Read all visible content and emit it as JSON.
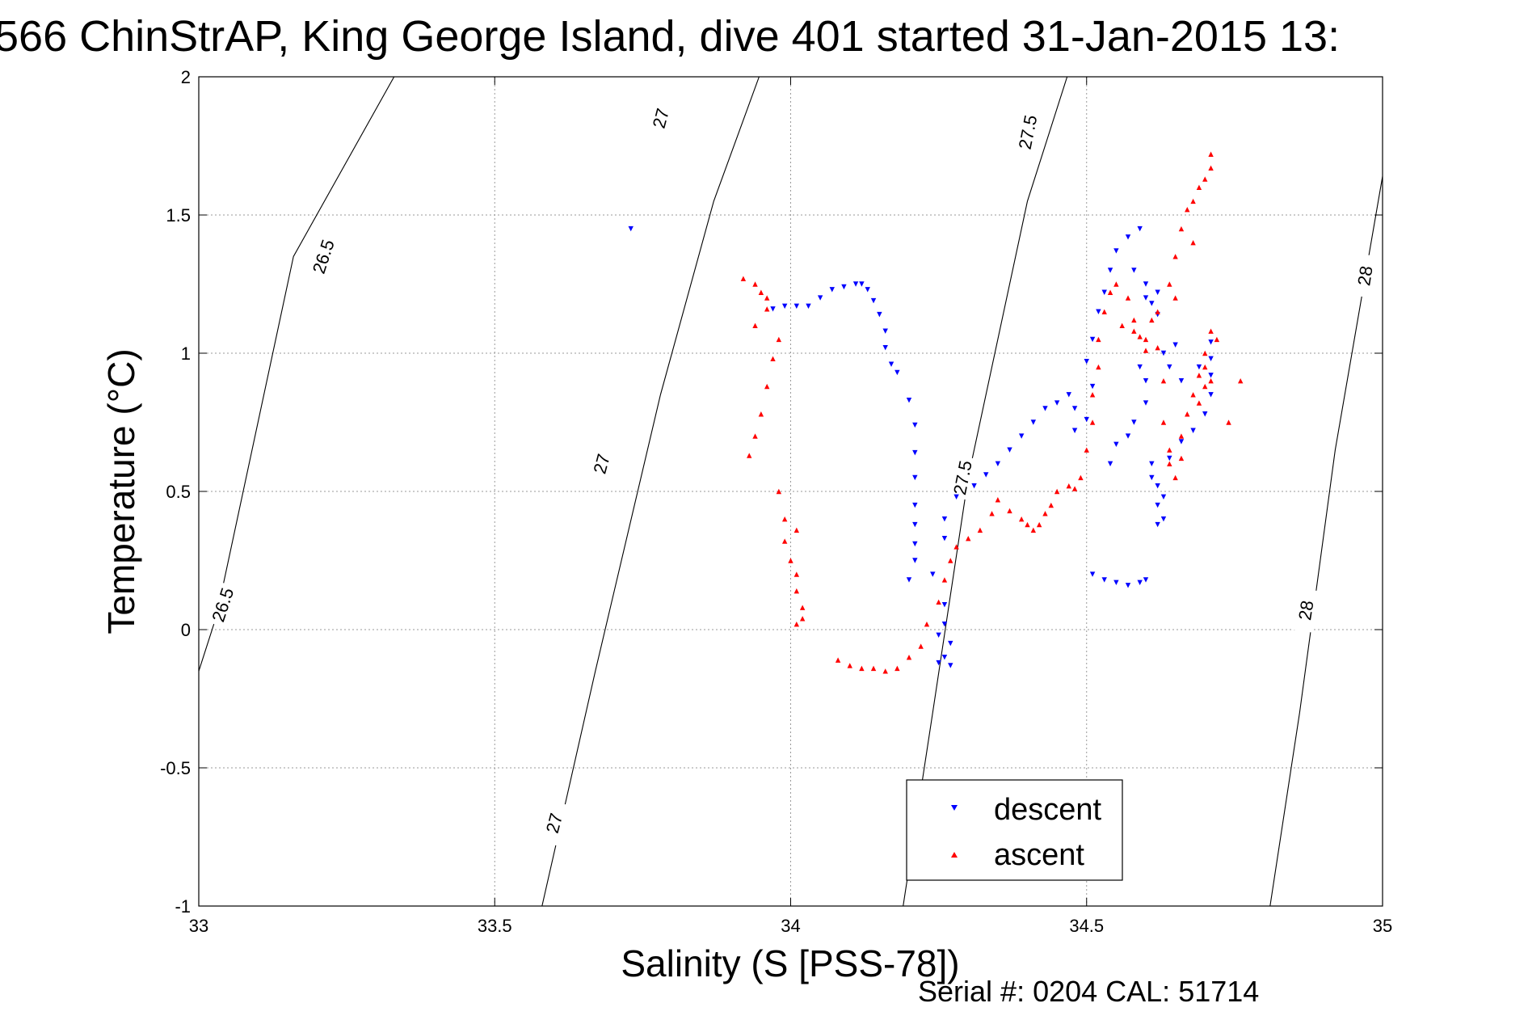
{
  "chart_data": {
    "type": "scatter",
    "title": "566 ChinStrAP, King George Island, dive 401 started 31-Jan-2015 13:",
    "xlabel": "Salinity (S [PSS-78])",
    "ylabel": "Temperature (°C)",
    "xlim": [
      33,
      35
    ],
    "ylim": [
      -1,
      2
    ],
    "grid": true,
    "x_ticks": [
      33,
      33.5,
      34,
      34.5,
      35
    ],
    "x_tick_labels": [
      "33",
      "33.5",
      "34",
      "34.5",
      "35"
    ],
    "y_ticks": [
      -1,
      -0.5,
      0,
      0.5,
      1,
      1.5,
      2
    ],
    "y_tick_labels": [
      "-1",
      "-0.5",
      "0",
      "0.5",
      "1",
      "1.5",
      "2"
    ],
    "footer": "Serial #: 0204  CAL: 51714",
    "legend_position": "bottom-center",
    "density_contours": [
      {
        "label": "26.5",
        "points": [
          [
            33.0,
            -0.15
          ],
          [
            33.03,
            0.05
          ],
          [
            33.16,
            1.35
          ],
          [
            33.33,
            2.0
          ]
        ],
        "labels_at": [
          [
            33.04,
            0.09
          ],
          [
            33.21,
            1.35
          ]
        ]
      },
      {
        "label": "27",
        "points": [
          [
            33.58,
            -1.0
          ],
          [
            33.67,
            -0.15
          ],
          [
            33.78,
            0.85
          ],
          [
            33.87,
            1.55
          ],
          [
            33.95,
            2.02
          ]
        ],
        "labels_at": [
          [
            33.6,
            -0.7
          ],
          [
            33.68,
            0.6
          ],
          [
            33.78,
            1.85
          ]
        ]
      },
      {
        "label": "27.5",
        "points": [
          [
            34.19,
            -1.0
          ],
          [
            34.24,
            -0.3
          ],
          [
            34.3,
            0.55
          ],
          [
            34.4,
            1.55
          ],
          [
            34.47,
            2.02
          ]
        ],
        "labels_at": [
          [
            34.29,
            0.55
          ],
          [
            34.4,
            1.8
          ]
        ]
      },
      {
        "label": "28",
        "points": [
          [
            34.81,
            -1.0
          ],
          [
            34.86,
            -0.3
          ],
          [
            34.92,
            0.65
          ],
          [
            35.0,
            1.64
          ]
        ],
        "labels_at": [
          [
            34.87,
            0.07
          ],
          [
            34.97,
            1.28
          ]
        ]
      }
    ],
    "series": [
      {
        "name": "descent",
        "marker": "triangle-down",
        "color": "#0000ff",
        "points": [
          [
            33.73,
            1.45
          ],
          [
            33.97,
            1.16
          ],
          [
            33.99,
            1.17
          ],
          [
            34.01,
            1.17
          ],
          [
            34.03,
            1.17
          ],
          [
            34.05,
            1.2
          ],
          [
            34.07,
            1.23
          ],
          [
            34.09,
            1.24
          ],
          [
            34.11,
            1.25
          ],
          [
            34.12,
            1.25
          ],
          [
            34.13,
            1.23
          ],
          [
            34.14,
            1.19
          ],
          [
            34.15,
            1.14
          ],
          [
            34.16,
            1.08
          ],
          [
            34.16,
            1.02
          ],
          [
            34.17,
            0.96
          ],
          [
            34.18,
            0.93
          ],
          [
            34.2,
            0.83
          ],
          [
            34.21,
            0.74
          ],
          [
            34.21,
            0.64
          ],
          [
            34.21,
            0.55
          ],
          [
            34.21,
            0.45
          ],
          [
            34.21,
            0.38
          ],
          [
            34.21,
            0.31
          ],
          [
            34.21,
            0.25
          ],
          [
            34.2,
            0.18
          ],
          [
            34.24,
            0.2
          ],
          [
            34.26,
            0.33
          ],
          [
            34.26,
            0.4
          ],
          [
            34.26,
            0.09
          ],
          [
            34.25,
            -0.02
          ],
          [
            34.26,
            -0.1
          ],
          [
            34.25,
            -0.12
          ],
          [
            34.27,
            -0.13
          ],
          [
            34.27,
            -0.05
          ],
          [
            34.26,
            0.02
          ],
          [
            34.28,
            0.48
          ],
          [
            34.31,
            0.52
          ],
          [
            34.33,
            0.56
          ],
          [
            34.35,
            0.6
          ],
          [
            34.37,
            0.65
          ],
          [
            34.39,
            0.7
          ],
          [
            34.41,
            0.75
          ],
          [
            34.43,
            0.8
          ],
          [
            34.45,
            0.82
          ],
          [
            34.47,
            0.85
          ],
          [
            34.48,
            0.8
          ],
          [
            34.48,
            0.72
          ],
          [
            34.5,
            0.76
          ],
          [
            34.51,
            0.88
          ],
          [
            34.5,
            0.97
          ],
          [
            34.51,
            1.05
          ],
          [
            34.52,
            1.15
          ],
          [
            34.53,
            1.22
          ],
          [
            34.54,
            1.3
          ],
          [
            34.55,
            1.37
          ],
          [
            34.57,
            1.42
          ],
          [
            34.59,
            1.45
          ],
          [
            34.58,
            1.3
          ],
          [
            34.6,
            1.25
          ],
          [
            34.62,
            1.22
          ],
          [
            34.61,
            1.18
          ],
          [
            34.62,
            1.14
          ],
          [
            34.6,
            1.2
          ],
          [
            34.54,
            0.6
          ],
          [
            34.55,
            0.67
          ],
          [
            34.57,
            0.7
          ],
          [
            34.58,
            0.75
          ],
          [
            34.6,
            0.82
          ],
          [
            34.6,
            0.9
          ],
          [
            34.59,
            0.95
          ],
          [
            34.61,
            0.6
          ],
          [
            34.61,
            0.55
          ],
          [
            34.62,
            0.52
          ],
          [
            34.63,
            0.48
          ],
          [
            34.62,
            0.45
          ],
          [
            34.63,
            0.4
          ],
          [
            34.62,
            0.38
          ],
          [
            34.64,
            0.62
          ],
          [
            34.66,
            0.68
          ],
          [
            34.68,
            0.72
          ],
          [
            34.7,
            0.78
          ],
          [
            34.71,
            0.85
          ],
          [
            34.71,
            0.92
          ],
          [
            34.71,
            0.98
          ],
          [
            34.71,
            1.04
          ],
          [
            34.69,
            0.95
          ],
          [
            34.66,
            0.9
          ],
          [
            34.64,
            0.95
          ],
          [
            34.63,
            1.0
          ],
          [
            34.65,
            1.03
          ],
          [
            34.51,
            0.2
          ],
          [
            34.53,
            0.18
          ],
          [
            34.55,
            0.17
          ],
          [
            34.57,
            0.16
          ],
          [
            34.59,
            0.17
          ],
          [
            34.6,
            0.18
          ]
        ]
      },
      {
        "name": "ascent",
        "marker": "triangle-up",
        "color": "#ff0000",
        "points": [
          [
            33.92,
            1.27
          ],
          [
            33.94,
            1.25
          ],
          [
            33.95,
            1.22
          ],
          [
            33.96,
            1.2
          ],
          [
            33.94,
            1.1
          ],
          [
            33.96,
            1.16
          ],
          [
            33.98,
            1.05
          ],
          [
            33.97,
            0.98
          ],
          [
            33.96,
            0.88
          ],
          [
            33.95,
            0.78
          ],
          [
            33.94,
            0.7
          ],
          [
            33.93,
            0.63
          ],
          [
            33.98,
            0.5
          ],
          [
            33.99,
            0.4
          ],
          [
            33.99,
            0.32
          ],
          [
            34.01,
            0.36
          ],
          [
            34.0,
            0.25
          ],
          [
            34.01,
            0.2
          ],
          [
            34.01,
            0.14
          ],
          [
            34.02,
            0.08
          ],
          [
            34.02,
            0.04
          ],
          [
            34.01,
            0.02
          ],
          [
            34.08,
            -0.11
          ],
          [
            34.1,
            -0.13
          ],
          [
            34.12,
            -0.14
          ],
          [
            34.14,
            -0.14
          ],
          [
            34.16,
            -0.15
          ],
          [
            34.18,
            -0.14
          ],
          [
            34.2,
            -0.1
          ],
          [
            34.22,
            -0.06
          ],
          [
            34.23,
            0.02
          ],
          [
            34.25,
            0.1
          ],
          [
            34.26,
            0.18
          ],
          [
            34.27,
            0.25
          ],
          [
            34.28,
            0.3
          ],
          [
            34.3,
            0.33
          ],
          [
            34.32,
            0.36
          ],
          [
            34.34,
            0.42
          ],
          [
            34.35,
            0.47
          ],
          [
            34.37,
            0.43
          ],
          [
            34.39,
            0.4
          ],
          [
            34.4,
            0.38
          ],
          [
            34.41,
            0.36
          ],
          [
            34.42,
            0.38
          ],
          [
            34.43,
            0.42
          ],
          [
            34.44,
            0.45
          ],
          [
            34.45,
            0.5
          ],
          [
            34.47,
            0.52
          ],
          [
            34.48,
            0.51
          ],
          [
            34.49,
            0.55
          ],
          [
            34.5,
            0.65
          ],
          [
            34.51,
            0.75
          ],
          [
            34.51,
            0.85
          ],
          [
            34.52,
            0.95
          ],
          [
            34.52,
            1.05
          ],
          [
            34.53,
            1.15
          ],
          [
            34.54,
            1.22
          ],
          [
            34.55,
            1.25
          ],
          [
            34.57,
            1.2
          ],
          [
            34.58,
            1.12
          ],
          [
            34.59,
            1.06
          ],
          [
            34.6,
            1.01
          ],
          [
            34.62,
            1.02
          ],
          [
            34.63,
            0.9
          ],
          [
            34.63,
            0.75
          ],
          [
            34.64,
            0.65
          ],
          [
            34.64,
            0.6
          ],
          [
            34.65,
            0.55
          ],
          [
            34.66,
            0.62
          ],
          [
            34.66,
            0.7
          ],
          [
            34.67,
            0.78
          ],
          [
            34.68,
            0.85
          ],
          [
            34.69,
            0.92
          ],
          [
            34.7,
            1.0
          ],
          [
            34.71,
            1.08
          ],
          [
            34.7,
            0.95
          ],
          [
            34.7,
            0.88
          ],
          [
            34.69,
            0.82
          ],
          [
            34.71,
            0.9
          ],
          [
            34.72,
            1.05
          ],
          [
            34.76,
            0.9
          ],
          [
            34.74,
            0.75
          ],
          [
            34.6,
            1.05
          ],
          [
            34.62,
            1.15
          ],
          [
            34.64,
            1.25
          ],
          [
            34.65,
            1.35
          ],
          [
            34.66,
            1.45
          ],
          [
            34.67,
            1.52
          ],
          [
            34.68,
            1.55
          ],
          [
            34.69,
            1.6
          ],
          [
            34.7,
            1.63
          ],
          [
            34.71,
            1.67
          ],
          [
            34.71,
            1.72
          ],
          [
            34.68,
            1.4
          ],
          [
            34.65,
            1.2
          ],
          [
            34.61,
            1.12
          ],
          [
            34.58,
            1.08
          ],
          [
            34.56,
            1.1
          ]
        ]
      }
    ]
  }
}
